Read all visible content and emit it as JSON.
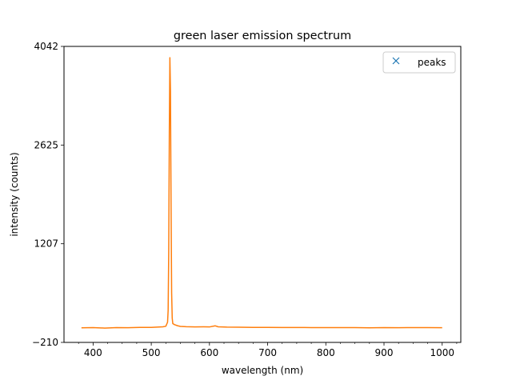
{
  "chart_data": {
    "type": "line",
    "title": "green laser emission spectrum",
    "xlabel": "wavelength (nm)",
    "ylabel": "intensity (counts)",
    "xlim": [
      350,
      1032
    ],
    "ylim": [
      -210,
      4042
    ],
    "xticks": [
      400,
      500,
      600,
      700,
      800,
      900,
      1000
    ],
    "yticks": [
      -210,
      1207,
      2625,
      4042
    ],
    "ytick_labels": [
      "−210",
      "1207",
      "2625",
      "4042"
    ],
    "legend": {
      "location": "upper right",
      "entries": [
        {
          "label": "peaks",
          "marker": "x",
          "color": "#1f77b4"
        }
      ]
    },
    "series": [
      {
        "color": "#ff7f0e",
        "points": [
          [
            380,
            0
          ],
          [
            400,
            2
          ],
          [
            420,
            -4
          ],
          [
            440,
            3
          ],
          [
            460,
            1
          ],
          [
            480,
            5
          ],
          [
            500,
            6
          ],
          [
            510,
            10
          ],
          [
            520,
            14
          ],
          [
            525,
            22
          ],
          [
            528,
            80
          ],
          [
            529,
            250
          ],
          [
            530,
            1100
          ],
          [
            531,
            2800
          ],
          [
            532,
            3880
          ],
          [
            533,
            3400
          ],
          [
            534,
            1800
          ],
          [
            535,
            500
          ],
          [
            536,
            140
          ],
          [
            537,
            60
          ],
          [
            540,
            45
          ],
          [
            545,
            30
          ],
          [
            550,
            20
          ],
          [
            560,
            15
          ],
          [
            575,
            12
          ],
          [
            590,
            14
          ],
          [
            600,
            12
          ],
          [
            610,
            28
          ],
          [
            615,
            14
          ],
          [
            630,
            10
          ],
          [
            650,
            9
          ],
          [
            675,
            6
          ],
          [
            700,
            5
          ],
          [
            725,
            4
          ],
          [
            750,
            4
          ],
          [
            775,
            3
          ],
          [
            800,
            3
          ],
          [
            825,
            2
          ],
          [
            850,
            2
          ],
          [
            875,
            0
          ],
          [
            900,
            3
          ],
          [
            925,
            1
          ],
          [
            950,
            3
          ],
          [
            975,
            2
          ],
          [
            1000,
            1
          ]
        ]
      }
    ]
  }
}
